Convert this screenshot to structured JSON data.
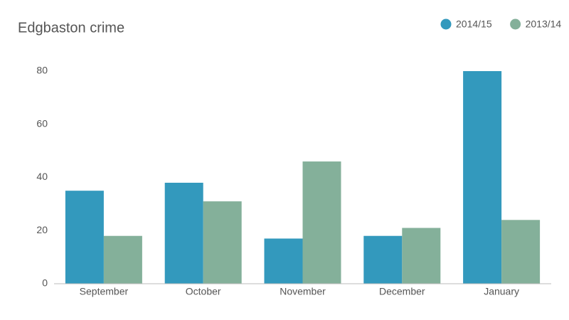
{
  "chart_data": {
    "type": "bar",
    "title": "Edgbaston crime",
    "categories": [
      "September",
      "October",
      "November",
      "December",
      "January"
    ],
    "series": [
      {
        "name": "2014/15",
        "color": "#3399bd",
        "values": [
          35,
          38,
          17,
          18,
          80
        ]
      },
      {
        "name": "2013/14",
        "color": "#84b09a",
        "values": [
          18,
          31,
          46,
          21,
          24
        ]
      }
    ],
    "ylim": [
      0,
      80
    ],
    "yticks": [
      0,
      20,
      40,
      60,
      80
    ],
    "grid": false,
    "legend": "top-right"
  }
}
